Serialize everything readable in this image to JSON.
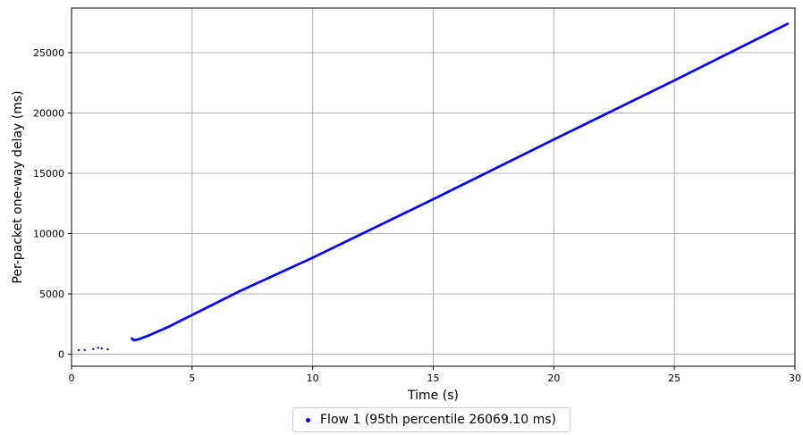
{
  "chart_data": {
    "type": "scatter",
    "title": "",
    "xlabel": "Time (s)",
    "ylabel": "Per-packet one-way delay (ms)",
    "xlim": [
      0,
      30
    ],
    "ylim": [
      -1000,
      28700
    ],
    "xticks": [
      0,
      5,
      10,
      15,
      20,
      25,
      30
    ],
    "yticks": [
      0,
      5000,
      10000,
      15000,
      20000,
      25000
    ],
    "grid": true,
    "legend_position": "bottom-center",
    "series": [
      {
        "name": "Flow 1 (95th percentile 26069.10 ms)",
        "color": "#0000ff",
        "sparse_points": [
          [
            0.3,
            330
          ],
          [
            0.55,
            350
          ],
          [
            0.9,
            420
          ],
          [
            1.1,
            520
          ],
          [
            1.25,
            480
          ],
          [
            1.5,
            400
          ]
        ],
        "trend": [
          [
            2.5,
            1300
          ],
          [
            2.6,
            1150
          ],
          [
            2.8,
            1250
          ],
          [
            3.2,
            1550
          ],
          [
            4.0,
            2250
          ],
          [
            5.0,
            3250
          ],
          [
            7.0,
            5250
          ],
          [
            10.0,
            8000
          ],
          [
            15.0,
            12850
          ],
          [
            20.0,
            17800
          ],
          [
            25.0,
            22700
          ],
          [
            29.7,
            27400
          ]
        ]
      }
    ]
  }
}
